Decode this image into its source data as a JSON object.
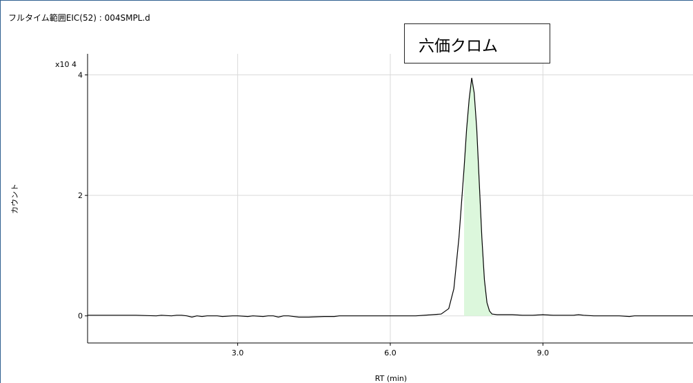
{
  "chart_data": {
    "type": "line",
    "title": "フルタイム範囲EIC(52) : 004SMPL.d",
    "annotation": "六価クロム",
    "xlabel": "RT (min)",
    "ylabel": "カウント",
    "y_multiplier": "x10 4",
    "xlim": [
      0.05,
      11.95
    ],
    "ylim": [
      -0.45,
      4.35
    ],
    "x_ticks": [
      3.0,
      6.0,
      9.0
    ],
    "x_tick_labels": [
      "3.0",
      "6.0",
      "9.0"
    ],
    "y_ticks": [
      0,
      2,
      4
    ],
    "y_tick_labels": [
      "0",
      "2",
      "4"
    ],
    "grid": true,
    "series": [
      {
        "x": [
          0.05,
          1.0,
          1.4,
          1.5,
          1.7,
          1.8,
          1.9,
          2.0,
          2.1,
          2.2,
          2.3,
          2.4,
          2.6,
          2.7,
          2.9,
          3.0,
          3.2,
          3.3,
          3.5,
          3.6,
          3.7,
          3.8,
          3.9,
          4.0,
          4.2,
          4.4,
          4.7,
          4.9,
          5.0,
          5.5,
          6.0,
          6.5,
          7.0,
          7.15,
          7.25,
          7.35,
          7.45,
          7.5,
          7.55,
          7.6,
          7.65,
          7.7,
          7.75,
          7.8,
          7.85,
          7.9,
          7.95,
          8.0,
          8.1,
          8.2,
          8.4,
          8.6,
          8.8,
          9.0,
          9.2,
          9.6,
          9.7,
          9.8,
          10.0,
          10.5,
          10.7,
          10.8,
          11.0,
          11.5,
          11.95
        ],
        "y": [
          0.01,
          0.01,
          0.0,
          0.01,
          0.0,
          0.01,
          0.01,
          0.0,
          -0.02,
          0.0,
          -0.01,
          0.0,
          0.0,
          -0.01,
          0.0,
          0.0,
          -0.01,
          0.0,
          -0.01,
          0.0,
          0.0,
          -0.02,
          0.0,
          0.0,
          -0.02,
          -0.02,
          -0.01,
          -0.01,
          0.0,
          0.0,
          0.0,
          0.0,
          0.03,
          0.12,
          0.45,
          1.3,
          2.45,
          3.1,
          3.6,
          3.95,
          3.7,
          3.1,
          2.2,
          1.3,
          0.6,
          0.22,
          0.08,
          0.03,
          0.02,
          0.02,
          0.02,
          0.01,
          0.01,
          0.02,
          0.01,
          0.01,
          0.02,
          0.01,
          0.0,
          0.0,
          -0.01,
          0.0,
          0.0,
          0.0,
          0.0
        ],
        "line_color": "#000000",
        "peak_fill_color": "#dcf7dc",
        "peak_fill_range": [
          7.4,
          8.05
        ]
      }
    ]
  },
  "colors": {
    "grid": "#d9d9d9",
    "axis": "#000000",
    "frame": "#2f5f8f"
  }
}
